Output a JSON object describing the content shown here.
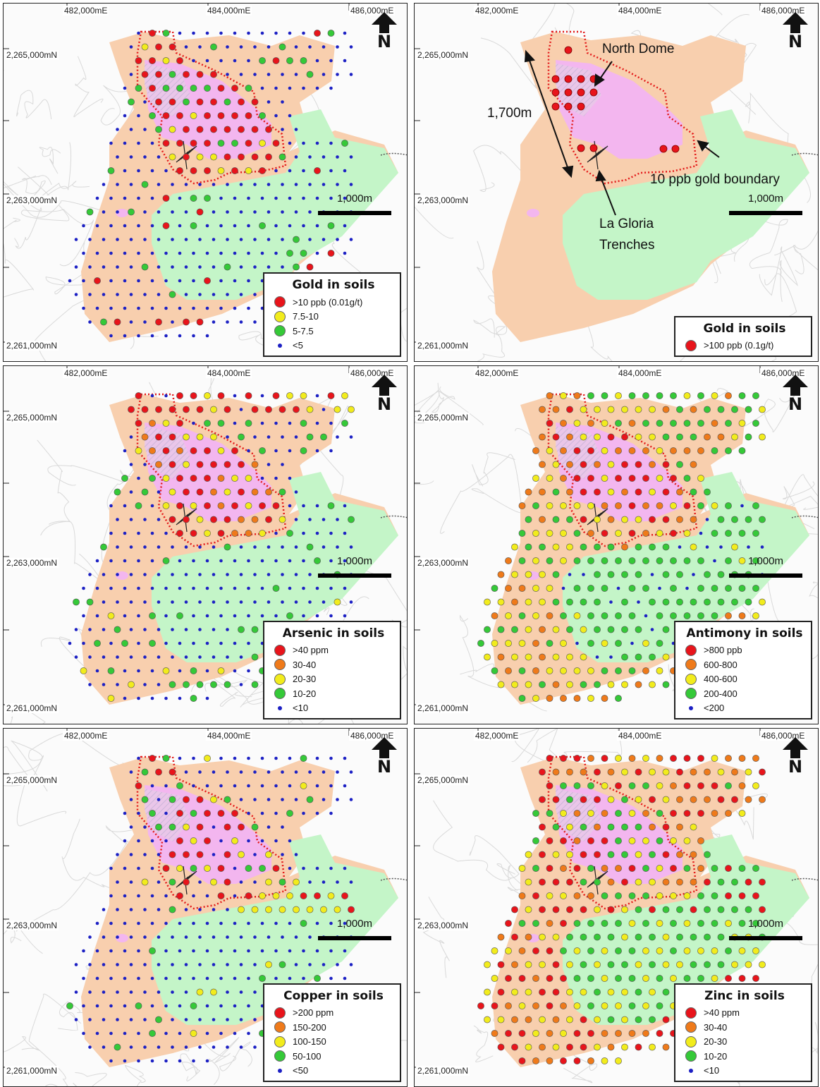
{
  "coordinates": {
    "easting": [
      "482,000mE",
      "484,000mE",
      "486,000mE"
    ],
    "northing": [
      "2,265,000mN",
      "2,263,000mN",
      "2,261,000mN"
    ]
  },
  "north_arrow_label": "N",
  "scale_label": "1,000m",
  "colors": {
    "andesite": "#f8cfae",
    "felsic_green": "#c4f5c8",
    "pink_alteration": "#f3b6ef",
    "dome_hatch": "#e9c8e8",
    "boundary": "#e31b1b",
    "contours": "#d9d9d9"
  },
  "annotations": {
    "north_dome": "North Dome",
    "distance": "1,700m",
    "gold_boundary": "10 ppb gold boundary",
    "trenches_line1": "La Gloria",
    "trenches_line2": "Trenches"
  },
  "panels": [
    {
      "key": "gold",
      "title": "Gold in soils",
      "legend": [
        {
          "label": ">10 ppb (0.01g/t)",
          "color": "#e8141b",
          "icon": "red-circle-icon"
        },
        {
          "label": "7.5-10",
          "color": "#f2ec1c",
          "icon": "yellow-circle-icon"
        },
        {
          "label": "5-7.5",
          "color": "#35c938",
          "icon": "green-circle-icon"
        },
        {
          "label": "<5",
          "color": "#1c20c4",
          "icon": "blue-dot-icon"
        }
      ]
    },
    {
      "key": "gold_high",
      "title": "Gold in soils",
      "legend": [
        {
          "label": ">100 ppb (0.1g/t)",
          "color": "#e8141b",
          "icon": "red-circle-icon"
        }
      ]
    },
    {
      "key": "arsenic",
      "title": "Arsenic in soils",
      "legend": [
        {
          "label": ">40 ppm",
          "color": "#e8141b",
          "icon": "red-circle-icon"
        },
        {
          "label": "30-40",
          "color": "#ef7a1a",
          "icon": "orange-circle-icon"
        },
        {
          "label": "20-30",
          "color": "#f2ec1c",
          "icon": "yellow-circle-icon"
        },
        {
          "label": "10-20",
          "color": "#35c938",
          "icon": "green-circle-icon"
        },
        {
          "label": "<10",
          "color": "#1c20c4",
          "icon": "blue-dot-icon"
        }
      ]
    },
    {
      "key": "antimony",
      "title": "Antimony in soils",
      "legend": [
        {
          "label": ">800 ppb",
          "color": "#e8141b",
          "icon": "red-circle-icon"
        },
        {
          "label": "600-800",
          "color": "#ef7a1a",
          "icon": "orange-circle-icon"
        },
        {
          "label": "400-600",
          "color": "#f2ec1c",
          "icon": "yellow-circle-icon"
        },
        {
          "label": "200-400",
          "color": "#35c938",
          "icon": "green-circle-icon"
        },
        {
          "label": "<200",
          "color": "#1c20c4",
          "icon": "blue-dot-icon"
        }
      ]
    },
    {
      "key": "copper",
      "title": "Copper in soils",
      "legend": [
        {
          "label": ">200 ppm",
          "color": "#e8141b",
          "icon": "red-circle-icon"
        },
        {
          "label": "150-200",
          "color": "#ef7a1a",
          "icon": "orange-circle-icon"
        },
        {
          "label": "100-150",
          "color": "#f2ec1c",
          "icon": "yellow-circle-icon"
        },
        {
          "label": "50-100",
          "color": "#35c938",
          "icon": "green-circle-icon"
        },
        {
          "label": "<50",
          "color": "#1c20c4",
          "icon": "blue-dot-icon"
        }
      ]
    },
    {
      "key": "zinc",
      "title": "Zinc in soils",
      "legend": [
        {
          "label": ">40 ppm",
          "color": "#e8141b",
          "icon": "red-circle-icon"
        },
        {
          "label": "30-40",
          "color": "#ef7a1a",
          "icon": "orange-circle-icon"
        },
        {
          "label": "20-30",
          "color": "#f2ec1c",
          "icon": "yellow-circle-icon"
        },
        {
          "label": "10-20",
          "color": "#35c938",
          "icon": "green-circle-icon"
        },
        {
          "label": "<10",
          "color": "#1c20c4",
          "icon": "blue-dot-icon"
        }
      ]
    }
  ]
}
